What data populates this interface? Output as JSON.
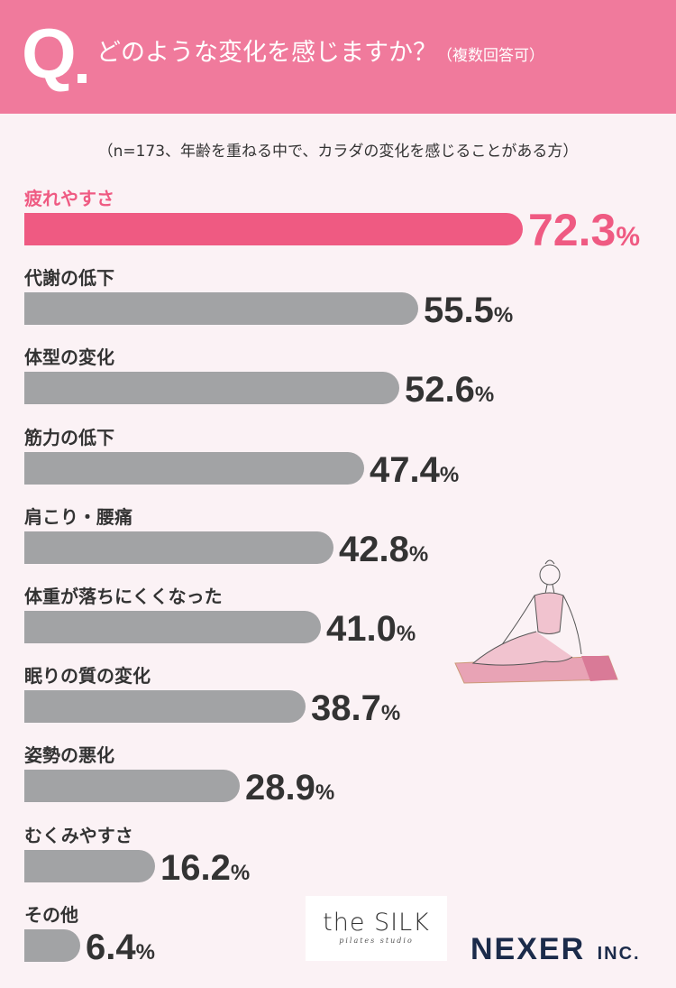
{
  "header": {
    "q": "Q",
    "title": "どのような変化を感じますか？",
    "title_note": "（複数回答可）"
  },
  "note": "（n=173、年齢を重ねる中で、カラダの変化を感じることがある方）",
  "colors": {
    "header": "#f07a9c",
    "highlight": "#ef5a82",
    "bar": "#a2a3a5",
    "background": "#fbf2f5"
  },
  "chart_data": {
    "type": "bar",
    "orientation": "horizontal",
    "unit": "%",
    "categories": [
      "疲れやすさ",
      "代謝の低下",
      "体型の変化",
      "筋力の低下",
      "肩こり・腰痛",
      "体重が落ちにくくなった",
      "眠りの質の変化",
      "姿勢の悪化",
      "むくみやすさ",
      "その他"
    ],
    "values": [
      72.3,
      55.5,
      52.6,
      47.4,
      42.8,
      41.0,
      38.7,
      28.9,
      16.2,
      6.4
    ],
    "highlight_index": 0
  },
  "logos": {
    "silk": "the SILK",
    "silk_sub": "pilates studio",
    "nexer": "NEXER",
    "nexer_sub": "INC."
  }
}
